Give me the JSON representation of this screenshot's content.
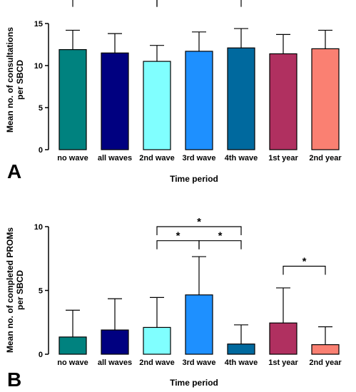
{
  "chart_data": [
    {
      "panel_label": "A",
      "type": "bar",
      "categories": [
        "no wave",
        "all waves",
        "2nd wave",
        "3rd wave",
        "4th wave",
        "1st year",
        "2nd year"
      ],
      "values": [
        11.9,
        11.5,
        10.5,
        11.7,
        12.1,
        11.4,
        12.0
      ],
      "error_upper": [
        14.2,
        13.8,
        12.4,
        14.0,
        14.4,
        13.7,
        14.2
      ],
      "colors": [
        "#00827f",
        "#000080",
        "#80ffff",
        "#1e90ff",
        "#00699e",
        "#b03060",
        "#fa8072"
      ],
      "xlabel": "Time period",
      "ylabel_lines": [
        "Mean no. of consultations",
        "per SBCD"
      ],
      "ylim": [
        0,
        15
      ],
      "yticks": [
        "0",
        "5",
        "10",
        "15"
      ],
      "significance": [
        {
          "from": 0,
          "to": 2,
          "label": "*",
          "level": 18.0
        },
        {
          "from": 2,
          "to": 4,
          "label": "*",
          "level": 18.0
        }
      ]
    },
    {
      "panel_label": "B",
      "type": "bar",
      "categories": [
        "no wave",
        "all waves",
        "2nd wave",
        "3rd wave",
        "4th wave",
        "1st year",
        "2nd year"
      ],
      "values": [
        1.35,
        1.9,
        2.1,
        4.65,
        0.8,
        2.45,
        0.75
      ],
      "error_upper": [
        3.45,
        4.35,
        4.45,
        7.65,
        2.3,
        5.2,
        2.15
      ],
      "colors": [
        "#00827f",
        "#000080",
        "#80ffff",
        "#1e90ff",
        "#00699e",
        "#b03060",
        "#fa8072"
      ],
      "xlabel": "Time period",
      "ylabel_lines": [
        "Mean no. of completed PROMs",
        "per SBCD"
      ],
      "ylim": [
        0,
        10
      ],
      "yticks": [
        "0",
        "5",
        "10"
      ],
      "significance": [
        {
          "from": 2,
          "to": 4,
          "label": "*",
          "level": 10.0
        },
        {
          "from": 2,
          "to": 3,
          "label": "*",
          "level": 8.9
        },
        {
          "from": 3,
          "to": 4,
          "label": "*",
          "level": 8.9
        },
        {
          "from": 5,
          "to": 6,
          "label": "*",
          "level": 6.9
        }
      ]
    }
  ]
}
